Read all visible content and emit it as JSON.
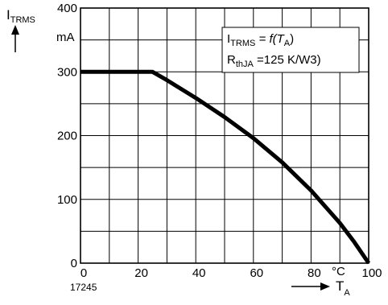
{
  "chart_data": {
    "type": "line",
    "title": "",
    "xlabel": "T",
    "xlabel_sub": "A",
    "x_unit": "°C",
    "ylabel": "I",
    "ylabel_sub": "TRMS",
    "y_unit": "mA",
    "xlim": [
      0,
      100
    ],
    "ylim": [
      0,
      400
    ],
    "x_ticks": [
      "0",
      "20",
      "40",
      "60",
      "80",
      "100"
    ],
    "y_ticks": [
      "0",
      "100",
      "200",
      "300",
      "400"
    ],
    "grid": true,
    "figure_id": "17245",
    "legend": {
      "placement": "top-right",
      "line1_main": "I",
      "line1_sub": "TRMS",
      "line1_rest": " = f(T",
      "line1_sub2": "A",
      "line1_end": ")",
      "line2_main": "R",
      "line2_sub": "thJA",
      "line2_rest": " =125 K/W3)"
    },
    "series": [
      {
        "x": [
          0,
          25,
          30,
          40,
          50,
          60,
          70,
          80,
          90,
          95,
          100
        ],
        "y": [
          300,
          300,
          287,
          259,
          229,
          196,
          158,
          114,
          63,
          33,
          0
        ]
      }
    ]
  }
}
